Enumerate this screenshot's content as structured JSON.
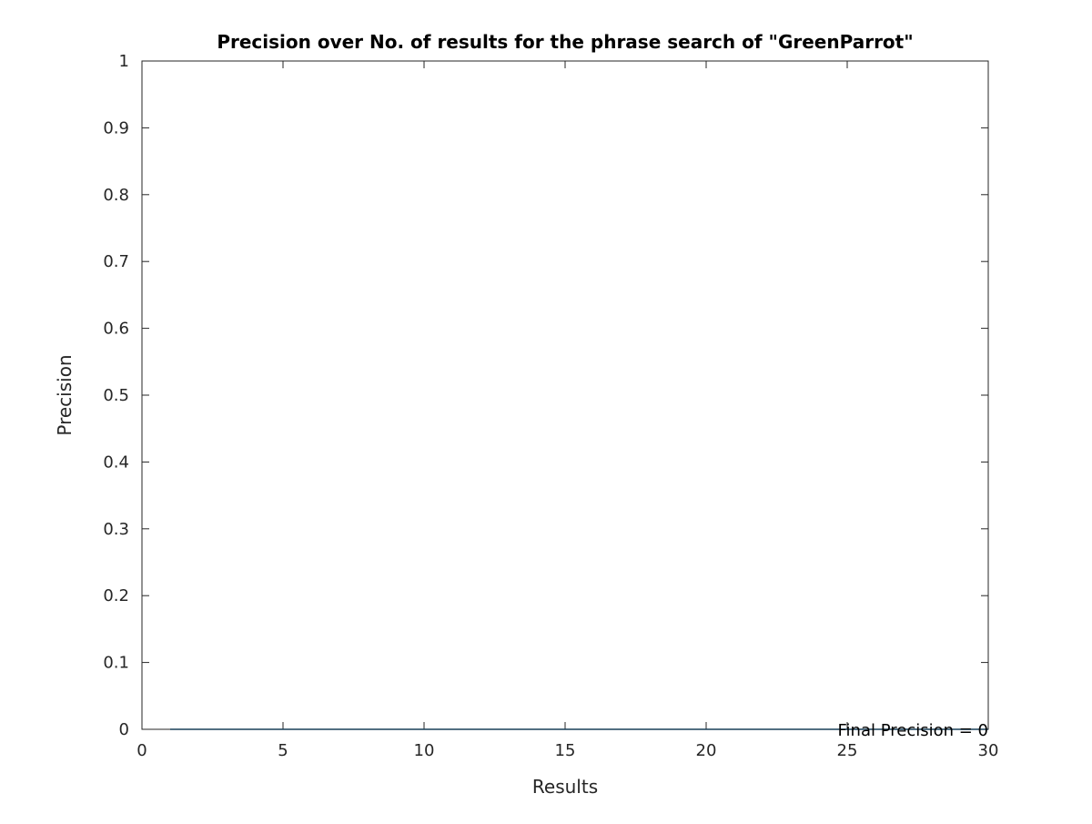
{
  "chart_data": {
    "type": "line",
    "title": "Precision over No. of results for the phrase search of \"GreenParrot\"",
    "xlabel": "Results",
    "ylabel": "Precision",
    "xlim": [
      0,
      30
    ],
    "ylim": [
      0,
      1
    ],
    "xticks": [
      0,
      5,
      10,
      15,
      20,
      25,
      30
    ],
    "yticks": [
      0,
      0.1,
      0.2,
      0.3,
      0.4,
      0.5,
      0.6,
      0.7,
      0.8,
      0.9,
      1
    ],
    "grid": false,
    "series": [
      {
        "color": "#0072bd",
        "x": [
          1,
          2,
          3,
          4,
          5,
          6,
          7,
          8,
          9,
          10,
          11,
          12,
          13,
          14,
          15,
          16,
          17,
          18,
          19,
          20,
          21,
          22,
          23,
          24,
          25,
          26,
          27,
          28,
          29,
          30
        ],
        "y": [
          0,
          0,
          0,
          0,
          0,
          0,
          0,
          0,
          0,
          0,
          0,
          0,
          0,
          0,
          0,
          0,
          0,
          0,
          0,
          0,
          0,
          0,
          0,
          0,
          0,
          0,
          0,
          0,
          0,
          0
        ]
      }
    ],
    "annotation": {
      "text": "Final Precision = 0",
      "x": 30,
      "y": 0
    },
    "colors": {
      "axis": "#262626",
      "title": "#000000"
    }
  }
}
